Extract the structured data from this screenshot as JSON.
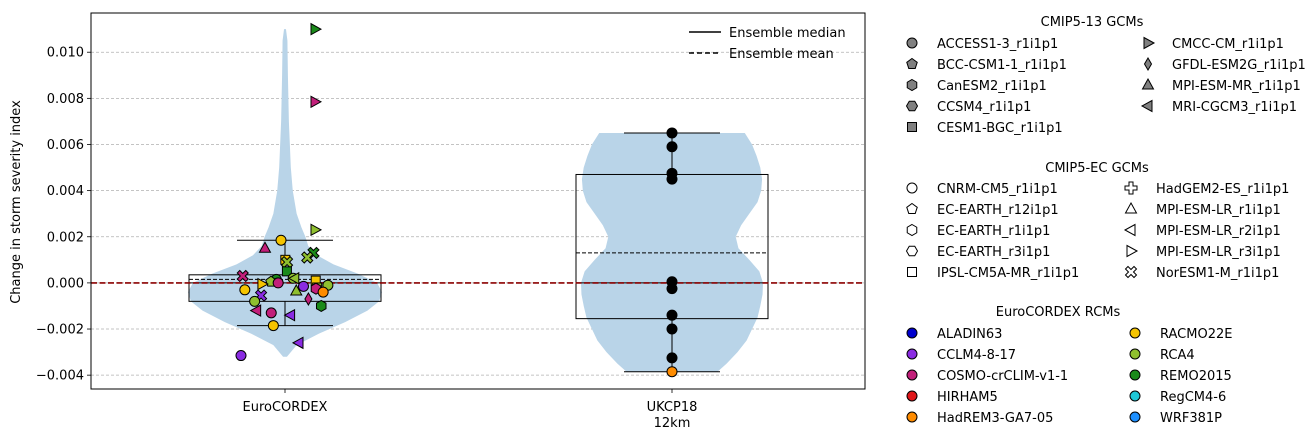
{
  "chart_data": {
    "type": "violin",
    "ylabel": "Change in storm severity index",
    "ylim": [
      -0.0046,
      0.0117
    ],
    "yticks": [
      -0.004,
      -0.002,
      0.0,
      0.002,
      0.004,
      0.006,
      0.008,
      0.01
    ],
    "ytick_labels": [
      "−0.004",
      "−0.002",
      "0.000",
      "0.002",
      "0.004",
      "0.006",
      "0.008",
      "0.010"
    ],
    "grid": "y, dashed",
    "zero_line": {
      "value": 0.0,
      "color": "#8b0000"
    },
    "categories": [
      {
        "label": "EuroCORDEX",
        "sublabel": ""
      },
      {
        "label": "UKCP18",
        "sublabel": "12km"
      }
    ],
    "boxes": [
      {
        "q1": -0.0008,
        "q3": 0.00035,
        "median": 0.0,
        "mean": 0.00015,
        "whisker_low": -0.00185,
        "whisker_high": 0.00185
      },
      {
        "q1": -0.00155,
        "q3": 0.0047,
        "median": 0.0,
        "mean": 0.0013,
        "whisker_low": -0.00385,
        "whisker_high": 0.0065
      }
    ],
    "violins": [
      {
        "profile": [
          [
            -0.0032,
            0.02
          ],
          [
            -0.0027,
            0.12
          ],
          [
            -0.0022,
            0.35
          ],
          [
            -0.0017,
            0.62
          ],
          [
            -0.0012,
            0.85
          ],
          [
            -0.0008,
            0.97
          ],
          [
            -0.0004,
            1.0
          ],
          [
            0.0,
            0.95
          ],
          [
            0.0004,
            0.75
          ],
          [
            0.0008,
            0.5
          ],
          [
            0.0012,
            0.33
          ],
          [
            0.0016,
            0.24
          ],
          [
            0.002,
            0.21
          ],
          [
            0.0024,
            0.17
          ],
          [
            0.003,
            0.12
          ],
          [
            0.004,
            0.08
          ],
          [
            0.005,
            0.06
          ],
          [
            0.006,
            0.05
          ],
          [
            0.007,
            0.04
          ],
          [
            0.008,
            0.035
          ],
          [
            0.009,
            0.03
          ],
          [
            0.0105,
            0.025
          ],
          [
            0.011,
            0.01
          ]
        ],
        "color": "#b9d4e8"
      },
      {
        "profile": [
          [
            -0.00385,
            0.5
          ],
          [
            -0.0035,
            0.6
          ],
          [
            -0.003,
            0.72
          ],
          [
            -0.0025,
            0.82
          ],
          [
            -0.002,
            0.88
          ],
          [
            -0.0015,
            0.94
          ],
          [
            -0.001,
            0.97
          ],
          [
            -0.0005,
            0.995
          ],
          [
            0.0,
            1.0
          ],
          [
            0.0005,
            0.96
          ],
          [
            0.001,
            0.85
          ],
          [
            0.0015,
            0.73
          ],
          [
            0.002,
            0.7
          ],
          [
            0.0025,
            0.76
          ],
          [
            0.003,
            0.85
          ],
          [
            0.0035,
            0.94
          ],
          [
            0.004,
            0.98
          ],
          [
            0.0045,
            0.99
          ],
          [
            0.005,
            0.97
          ],
          [
            0.0055,
            0.93
          ],
          [
            0.006,
            0.88
          ],
          [
            0.0065,
            0.8
          ]
        ],
        "color": "#b9d4e8"
      }
    ],
    "points": [
      {
        "group": 0,
        "y": 0.011,
        "shape": "triangle-right",
        "color": "#1a8a1a"
      },
      {
        "group": 0,
        "y": 0.00785,
        "shape": "triangle-right",
        "color": "#c21f7a"
      },
      {
        "group": 0,
        "y": 0.0023,
        "shape": "triangle-right",
        "color": "#8fbf2f"
      },
      {
        "group": 0,
        "y": 0.00185,
        "shape": "circle",
        "color": "#f5c400"
      },
      {
        "group": 0,
        "y": 0.0015,
        "shape": "triangle-up",
        "color": "#c21f7a"
      },
      {
        "group": 0,
        "y": 0.0013,
        "shape": "cross",
        "color": "#1a8a1a"
      },
      {
        "group": 0,
        "y": 0.0011,
        "shape": "cross",
        "color": "#8fbf2f"
      },
      {
        "group": 0,
        "y": 0.001,
        "shape": "square",
        "color": "#f5c400"
      },
      {
        "group": 0,
        "y": 0.0009,
        "shape": "cross",
        "color": "#8fbf2f"
      },
      {
        "group": 0,
        "y": 0.0005,
        "shape": "square",
        "color": "#1a8a1a"
      },
      {
        "group": 0,
        "y": 0.0003,
        "shape": "cross",
        "color": "#c21f7a"
      },
      {
        "group": 0,
        "y": 0.0002,
        "shape": "circle",
        "color": "#8fbf2f"
      },
      {
        "group": 0,
        "y": 0.0002,
        "shape": "triangle-left",
        "color": "#8fbf2f"
      },
      {
        "group": 0,
        "y": 0.00015,
        "shape": "circle",
        "color": "#1a8a1a"
      },
      {
        "group": 0,
        "y": 0.0001,
        "shape": "square",
        "color": "#f5c400"
      },
      {
        "group": 0,
        "y": 5e-05,
        "shape": "pentagon",
        "color": "#8fbf2f"
      },
      {
        "group": 0,
        "y": 0.0,
        "shape": "circle",
        "color": "#c21f7a"
      },
      {
        "group": 0,
        "y": -5e-05,
        "shape": "triangle-right",
        "color": "#f5c400"
      },
      {
        "group": 0,
        "y": -0.0001,
        "shape": "circle",
        "color": "#8fbf2f"
      },
      {
        "group": 0,
        "y": -0.00015,
        "shape": "circle",
        "color": "#8a2be2"
      },
      {
        "group": 0,
        "y": -0.0002,
        "shape": "square",
        "color": "#8fbf2f"
      },
      {
        "group": 0,
        "y": -0.00025,
        "shape": "hexagon",
        "color": "#c21f7a"
      },
      {
        "group": 0,
        "y": -0.0003,
        "shape": "circle",
        "color": "#f5c400"
      },
      {
        "group": 0,
        "y": -0.00035,
        "shape": "triangle-up",
        "color": "#8fbf2f"
      },
      {
        "group": 0,
        "y": -0.0004,
        "shape": "circle",
        "color": "#ff8c00"
      },
      {
        "group": 0,
        "y": -0.00055,
        "shape": "cross",
        "color": "#8a2be2"
      },
      {
        "group": 0,
        "y": -0.0007,
        "shape": "diamond",
        "color": "#c21f7a"
      },
      {
        "group": 0,
        "y": -0.0008,
        "shape": "circle",
        "color": "#8fbf2f"
      },
      {
        "group": 0,
        "y": -0.001,
        "shape": "hexagon",
        "color": "#1a8a1a"
      },
      {
        "group": 0,
        "y": -0.0012,
        "shape": "triangle-left",
        "color": "#c21f7a"
      },
      {
        "group": 0,
        "y": -0.0013,
        "shape": "circle",
        "color": "#c21f7a"
      },
      {
        "group": 0,
        "y": -0.0014,
        "shape": "triangle-left",
        "color": "#8a2be2"
      },
      {
        "group": 0,
        "y": -0.00185,
        "shape": "circle",
        "color": "#f5c400"
      },
      {
        "group": 0,
        "y": -0.0026,
        "shape": "triangle-left",
        "color": "#8a2be2"
      },
      {
        "group": 0,
        "y": -0.00315,
        "shape": "circle",
        "color": "#8a2be2"
      },
      {
        "group": 1,
        "y": 0.0065,
        "shape": "circle",
        "color": "#000000"
      },
      {
        "group": 1,
        "y": 0.0059,
        "shape": "circle",
        "color": "#000000"
      },
      {
        "group": 1,
        "y": 0.00475,
        "shape": "circle",
        "color": "#000000"
      },
      {
        "group": 1,
        "y": 0.0045,
        "shape": "circle",
        "color": "#000000"
      },
      {
        "group": 1,
        "y": 5e-05,
        "shape": "circle",
        "color": "#000000"
      },
      {
        "group": 1,
        "y": -0.00025,
        "shape": "circle",
        "color": "#000000"
      },
      {
        "group": 1,
        "y": -0.0014,
        "shape": "circle",
        "color": "#000000"
      },
      {
        "group": 1,
        "y": -0.002,
        "shape": "circle",
        "color": "#000000"
      },
      {
        "group": 1,
        "y": -0.00325,
        "shape": "circle",
        "color": "#000000"
      },
      {
        "group": 1,
        "y": -0.00385,
        "shape": "circle",
        "color": "#ff8c00"
      }
    ],
    "legend_lines": [
      {
        "label": "Ensemble median",
        "style": "solid"
      },
      {
        "label": "Ensemble mean",
        "style": "dashed"
      }
    ],
    "legend_lines_position": "top-right"
  },
  "legend": {
    "cmip5_13": {
      "title": "CMIP5-13 GCMs",
      "items": [
        {
          "label": "ACCESS1-3_r1i1p1",
          "shape": "circle"
        },
        {
          "label": "BCC-CSM1-1_r1i1p1",
          "shape": "pentagon"
        },
        {
          "label": "CanESM2_r1i1p1",
          "shape": "hexagon"
        },
        {
          "label": "CCSM4_r1i1p1",
          "shape": "hexagon2"
        },
        {
          "label": "CESM1-BGC_r1i1p1",
          "shape": "square"
        },
        {
          "label": "CMCC-CM_r1i1p1",
          "shape": "triangle-right"
        },
        {
          "label": "GFDL-ESM2G_r1i1p1",
          "shape": "diamond"
        },
        {
          "label": "MPI-ESM-MR_r1i1p1",
          "shape": "triangle-up"
        },
        {
          "label": "MRI-CGCM3_r1i1p1",
          "shape": "triangle-left"
        }
      ],
      "fill": "#808080"
    },
    "cmip5_ec": {
      "title": "CMIP5-EC GCMs",
      "items": [
        {
          "label": "CNRM-CM5_r1i1p1",
          "shape": "circle"
        },
        {
          "label": "EC-EARTH_r12i1p1",
          "shape": "pentagon"
        },
        {
          "label": "EC-EARTH_r1i1p1",
          "shape": "hexagon"
        },
        {
          "label": "EC-EARTH_r3i1p1",
          "shape": "hexagon2"
        },
        {
          "label": "IPSL-CM5A-MR_r1i1p1",
          "shape": "square"
        },
        {
          "label": "HadGEM2-ES_r1i1p1",
          "shape": "plus"
        },
        {
          "label": "MPI-ESM-LR_r1i1p1",
          "shape": "triangle-up"
        },
        {
          "label": "MPI-ESM-LR_r2i1p1",
          "shape": "triangle-left"
        },
        {
          "label": "MPI-ESM-LR_r3i1p1",
          "shape": "triangle-right"
        },
        {
          "label": "NorESM1-M_r1i1p1",
          "shape": "cross"
        }
      ],
      "fill": "#ffffff"
    },
    "rcms": {
      "title": "EuroCORDEX RCMs",
      "items": [
        {
          "label": "ALADIN63",
          "color": "#0000cd"
        },
        {
          "label": "CCLM4-8-17",
          "color": "#8a2be2"
        },
        {
          "label": "COSMO-crCLIM-v1-1",
          "color": "#c21f7a"
        },
        {
          "label": "HIRHAM5",
          "color": "#e0161a"
        },
        {
          "label": "HadREM3-GA7-05",
          "color": "#ff8c00"
        },
        {
          "label": "RACMO22E",
          "color": "#f5c400"
        },
        {
          "label": "RCA4",
          "color": "#8fbf2f"
        },
        {
          "label": "REMO2015",
          "color": "#1a8a1a"
        },
        {
          "label": "RegCM4-6",
          "color": "#1ec8d8"
        },
        {
          "label": "WRF381P",
          "color": "#1e90ff"
        }
      ]
    }
  }
}
